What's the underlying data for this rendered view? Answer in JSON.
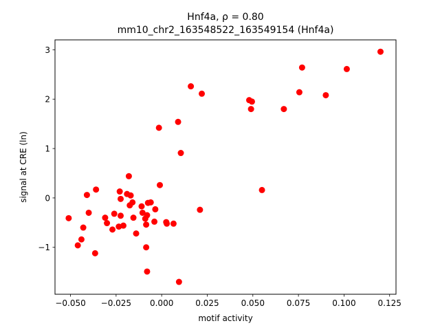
{
  "chart_data": {
    "type": "scatter",
    "title_line1": "Hnf4a, ρ = 0.80",
    "title_line2": "mm10_chr2_163548522_163549154 (Hnf4a)",
    "xlabel": "motif activity",
    "ylabel": "signal at CRE (ln)",
    "xlim": [
      -0.0585,
      0.1285
    ],
    "ylim": [
      -1.95,
      3.2
    ],
    "xticks": [
      -0.05,
      -0.025,
      0.0,
      0.025,
      0.05,
      0.075,
      0.1,
      0.125
    ],
    "xtick_labels": [
      "−0.050",
      "−0.025",
      "0.000",
      "0.025",
      "0.050",
      "0.075",
      "0.100",
      "0.125"
    ],
    "yticks": [
      -1,
      0,
      1,
      2,
      3
    ],
    "ytick_labels": [
      "−1",
      "0",
      "1",
      "2",
      "3"
    ],
    "marker_color": "#ff0000",
    "grid": false,
    "points": [
      {
        "x": -0.051,
        "y": -0.41
      },
      {
        "x": -0.046,
        "y": -0.96
      },
      {
        "x": -0.044,
        "y": -0.84
      },
      {
        "x": -0.043,
        "y": -0.6
      },
      {
        "x": -0.041,
        "y": 0.06
      },
      {
        "x": -0.04,
        "y": -0.3
      },
      {
        "x": -0.0365,
        "y": -1.12
      },
      {
        "x": -0.036,
        "y": 0.17
      },
      {
        "x": -0.031,
        "y": -0.4
      },
      {
        "x": -0.03,
        "y": -0.51
      },
      {
        "x": -0.027,
        "y": -0.64
      },
      {
        "x": -0.026,
        "y": -0.32
      },
      {
        "x": -0.0235,
        "y": -0.58
      },
      {
        "x": -0.023,
        "y": 0.13
      },
      {
        "x": -0.0225,
        "y": -0.36
      },
      {
        "x": -0.0225,
        "y": -0.02
      },
      {
        "x": -0.021,
        "y": -0.56
      },
      {
        "x": -0.019,
        "y": 0.08
      },
      {
        "x": -0.018,
        "y": 0.44
      },
      {
        "x": -0.0175,
        "y": -0.15
      },
      {
        "x": -0.017,
        "y": 0.05
      },
      {
        "x": -0.016,
        "y": -0.09
      },
      {
        "x": -0.0155,
        "y": -0.4
      },
      {
        "x": -0.014,
        "y": -0.72
      },
      {
        "x": -0.011,
        "y": -0.17
      },
      {
        "x": -0.0105,
        "y": -0.3
      },
      {
        "x": -0.009,
        "y": -0.42
      },
      {
        "x": -0.0085,
        "y": -0.54
      },
      {
        "x": -0.0085,
        "y": -1.0
      },
      {
        "x": -0.008,
        "y": -0.35
      },
      {
        "x": -0.008,
        "y": -1.49
      },
      {
        "x": -0.0075,
        "y": -0.1
      },
      {
        "x": -0.006,
        "y": -0.09
      },
      {
        "x": -0.004,
        "y": -0.48
      },
      {
        "x": -0.0035,
        "y": -0.23
      },
      {
        "x": -0.0015,
        "y": 1.42
      },
      {
        "x": -0.001,
        "y": 0.26
      },
      {
        "x": 0.0025,
        "y": -0.49
      },
      {
        "x": 0.0028,
        "y": -0.52
      },
      {
        "x": 0.0065,
        "y": -0.52
      },
      {
        "x": 0.009,
        "y": 1.54
      },
      {
        "x": 0.0095,
        "y": -1.7
      },
      {
        "x": 0.0105,
        "y": 0.91
      },
      {
        "x": 0.016,
        "y": 2.26
      },
      {
        "x": 0.021,
        "y": -0.24
      },
      {
        "x": 0.022,
        "y": 2.11
      },
      {
        "x": 0.048,
        "y": 1.98
      },
      {
        "x": 0.049,
        "y": 1.8
      },
      {
        "x": 0.0495,
        "y": 1.95
      },
      {
        "x": 0.055,
        "y": 0.16
      },
      {
        "x": 0.067,
        "y": 1.8
      },
      {
        "x": 0.0755,
        "y": 2.14
      },
      {
        "x": 0.077,
        "y": 2.64
      },
      {
        "x": 0.09,
        "y": 2.08
      },
      {
        "x": 0.1015,
        "y": 2.61
      },
      {
        "x": 0.12,
        "y": 2.96
      }
    ]
  }
}
